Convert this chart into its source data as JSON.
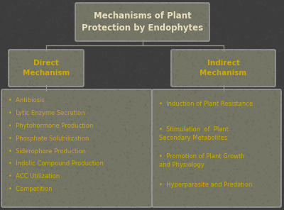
{
  "background_color": "#3d3d3d",
  "box_color": "#757565",
  "box_edge_color": "#999999",
  "title_text": "Mechanisms of Plant\nProtection by Endophytes",
  "title_color": "#e8e0c0",
  "direct_title": "Direct\nMechanism",
  "indirect_title": "Indirect\nMechanism",
  "label_color": "#ccaa00",
  "direct_items": [
    "Antibiosis",
    "Lytic Enzyme Secretion",
    "Phytohormone Production",
    "Phosphate Solubilization",
    "Siderophore Production",
    "Indolic Compound Production",
    "ACC Utilization",
    "Competition"
  ],
  "indirect_items": [
    "Induction of Plant Resistance",
    "Stimulation  of  Plant\nSecondary Metabolites",
    "Promotion of Plant Growth\nand Physiology",
    "Hyperparasite and Predation"
  ],
  "line_color": "#999988",
  "font_size_title": 8.5,
  "font_size_header": 7.5,
  "font_size_item": 6.0
}
